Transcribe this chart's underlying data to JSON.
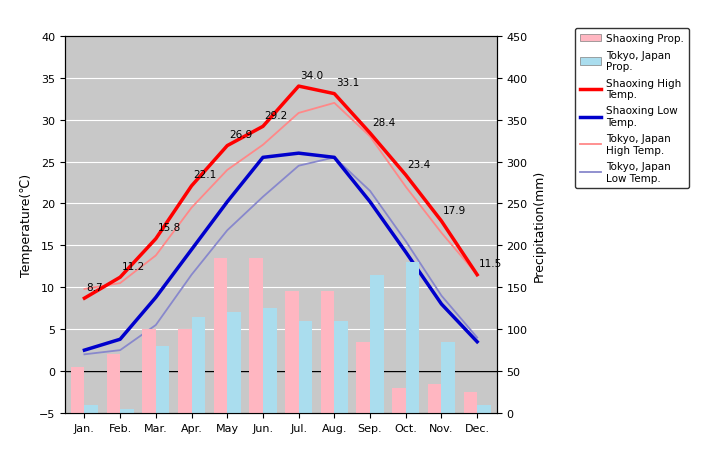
{
  "months": [
    "Jan.",
    "Feb.",
    "Mar.",
    "Apr.",
    "May",
    "Jun.",
    "Jul.",
    "Aug.",
    "Sep.",
    "Oct.",
    "Nov.",
    "Dec."
  ],
  "shaoxing_high": [
    8.7,
    11.2,
    15.8,
    22.1,
    26.9,
    29.2,
    34.0,
    33.1,
    28.4,
    23.4,
    17.9,
    11.5
  ],
  "shaoxing_low": [
    2.5,
    3.8,
    8.8,
    14.5,
    20.2,
    25.5,
    26.0,
    25.5,
    20.2,
    14.2,
    8.0,
    3.5
  ],
  "tokyo_high": [
    9.8,
    10.5,
    13.8,
    19.5,
    24.0,
    27.0,
    30.8,
    32.0,
    28.0,
    22.0,
    16.5,
    11.5
  ],
  "tokyo_low": [
    2.0,
    2.5,
    5.5,
    11.5,
    16.8,
    20.8,
    24.5,
    25.5,
    21.5,
    15.5,
    9.0,
    4.0
  ],
  "shaoxing_precip": [
    55,
    70,
    100,
    100,
    185,
    185,
    145,
    145,
    85,
    30,
    35,
    25
  ],
  "tokyo_precip": [
    10,
    5,
    80,
    115,
    120,
    125,
    110,
    110,
    165,
    180,
    85,
    10
  ],
  "shaoxing_high_color": "#FF0000",
  "shaoxing_low_color": "#0000CC",
  "tokyo_high_color": "#FF8888",
  "tokyo_low_color": "#8888CC",
  "shaoxing_precip_color": "#FFB6C1",
  "tokyo_precip_color": "#AADDEE",
  "bg_color": "#C8C8C8",
  "title_left": "Temperature(℃)",
  "title_right": "Precipitation(mm)",
  "ylim_temp": [
    -5,
    40
  ],
  "ylim_precip": [
    0,
    450
  ],
  "yticks_temp": [
    -5,
    0,
    5,
    10,
    15,
    20,
    25,
    30,
    35,
    40
  ],
  "yticks_precip": [
    0,
    50,
    100,
    150,
    200,
    250,
    300,
    350,
    400,
    450
  ],
  "annot_labels": [
    "8.7",
    "11.2",
    "15.8",
    "22.1",
    "26.9",
    "29.2",
    "34.0",
    "33.1",
    "28.4",
    "23.4",
    "17.9",
    "11.5"
  ],
  "legend_labels": [
    "Shaoxing Prop.",
    "Tokyo, Japan\nProp.",
    "Shaoxing High\nTemp.",
    "Shaoxing Low\nTemp.",
    "Tokyo, Japan\nHigh Temp.",
    "Tokyo, Japan\nLow Temp."
  ]
}
